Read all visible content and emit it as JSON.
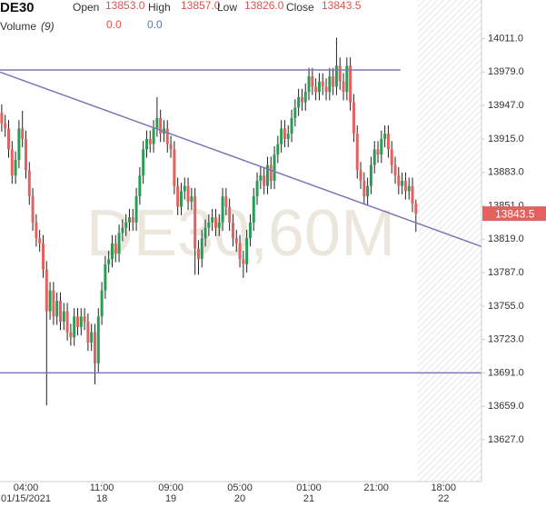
{
  "header": {
    "symbol": "DE30",
    "fields": [
      {
        "name": "Open",
        "value": "13853.0"
      },
      {
        "name": "High",
        "value": "13857.0"
      },
      {
        "name": "Low",
        "value": "13826.0"
      },
      {
        "name": "Close",
        "value": "13843.5"
      }
    ],
    "volume_label": "Volume",
    "volume_period": "(9)",
    "volume_values": [
      "0.0",
      "0.0"
    ]
  },
  "chart_data": {
    "type": "candlestick",
    "watermark": "DE30,60M",
    "up_color": "#2a9d55",
    "down_color": "#e5615f",
    "candles": {
      "open": [
        13940,
        13930,
        13925,
        13905,
        13880,
        13895,
        13925,
        13915,
        13885,
        13860,
        13835,
        13820,
        13815,
        13790,
        13750,
        13770,
        13745,
        13760,
        13740,
        13750,
        13730,
        13725,
        13745,
        13735,
        13745,
        13740,
        13720,
        13730,
        13700,
        13745,
        13770,
        13795,
        13800,
        13815,
        13805,
        13825,
        13830,
        13835,
        13840,
        13835,
        13860,
        13880,
        13905,
        13915,
        13910,
        13925,
        13935,
        13920,
        13925,
        13910,
        13905,
        13870,
        13850,
        13865,
        13870,
        13855,
        13860,
        13810,
        13800,
        13820,
        13830,
        13835,
        13840,
        13830,
        13835,
        13860,
        13850,
        13835,
        13820,
        13815,
        13800,
        13795,
        13820,
        13835,
        13860,
        13875,
        13880,
        13870,
        13890,
        13875,
        13900,
        13910,
        13925,
        13915,
        13920,
        13935,
        13945,
        13955,
        13950,
        13960,
        13975,
        13965,
        13960,
        13970,
        13965,
        13960,
        13975,
        13965,
        13985,
        13970,
        13960,
        13985,
        13950,
        13920,
        13885,
        13875,
        13860,
        13870,
        13890,
        13905,
        13900,
        13915,
        13920,
        13905,
        13890,
        13880,
        13870,
        13875,
        13865,
        13870,
        13853
      ],
      "high": [
        13948,
        13938,
        13933,
        13913,
        13903,
        13933,
        13942,
        13923,
        13893,
        13868,
        13843,
        13828,
        13823,
        13798,
        13778,
        13778,
        13768,
        13768,
        13758,
        13758,
        13738,
        13753,
        13753,
        13753,
        13753,
        13748,
        13738,
        13738,
        13753,
        13778,
        13803,
        13808,
        13823,
        13823,
        13833,
        13838,
        13843,
        13848,
        13848,
        13868,
        13888,
        13913,
        13923,
        13923,
        13933,
        13955,
        13943,
        13933,
        13933,
        13918,
        13913,
        13878,
        13873,
        13878,
        13878,
        13868,
        13868,
        13818,
        13828,
        13838,
        13843,
        13848,
        13848,
        13843,
        13868,
        13868,
        13858,
        13843,
        13828,
        13823,
        13808,
        13828,
        13843,
        13868,
        13883,
        13888,
        13888,
        13898,
        13898,
        13908,
        13918,
        13933,
        13933,
        13928,
        13943,
        13953,
        13963,
        13963,
        13968,
        13983,
        13983,
        13973,
        13978,
        13978,
        13973,
        13983,
        13983,
        14012,
        13993,
        13978,
        13993,
        13993,
        13958,
        13928,
        13893,
        13883,
        13878,
        13898,
        13913,
        13913,
        13923,
        13928,
        13928,
        13913,
        13898,
        13888,
        13883,
        13883,
        13878,
        13878,
        13857
      ],
      "low": [
        13922,
        13917,
        13897,
        13872,
        13872,
        13887,
        13907,
        13877,
        13852,
        13827,
        13812,
        13807,
        13782,
        13660,
        13742,
        13737,
        13737,
        13732,
        13732,
        13722,
        13717,
        13717,
        13727,
        13727,
        13732,
        13712,
        13712,
        13680,
        13692,
        13737,
        13762,
        13787,
        13792,
        13797,
        13797,
        13817,
        13822,
        13827,
        13827,
        13827,
        13852,
        13872,
        13897,
        13902,
        13902,
        13917,
        13912,
        13912,
        13902,
        13897,
        13862,
        13842,
        13842,
        13857,
        13847,
        13847,
        13785,
        13785,
        13792,
        13812,
        13822,
        13827,
        13822,
        13822,
        13827,
        13842,
        13827,
        13812,
        13807,
        13792,
        13782,
        13787,
        13812,
        13827,
        13852,
        13867,
        13862,
        13862,
        13867,
        13867,
        13892,
        13902,
        13907,
        13907,
        13912,
        13927,
        13937,
        13942,
        13942,
        13952,
        13957,
        13952,
        13952,
        13957,
        13952,
        13952,
        13957,
        13957,
        13962,
        13952,
        13952,
        13942,
        13912,
        13877,
        13867,
        13852,
        13852,
        13862,
        13882,
        13892,
        13892,
        13907,
        13897,
        13882,
        13872,
        13862,
        13862,
        13857,
        13857,
        13845,
        13826
      ],
      "close": [
        13930,
        13925,
        13905,
        13880,
        13895,
        13925,
        13915,
        13885,
        13860,
        13835,
        13820,
        13815,
        13790,
        13750,
        13770,
        13745,
        13760,
        13740,
        13750,
        13730,
        13725,
        13745,
        13735,
        13745,
        13740,
        13720,
        13730,
        13700,
        13745,
        13770,
        13795,
        13800,
        13815,
        13805,
        13825,
        13830,
        13835,
        13840,
        13835,
        13860,
        13880,
        13905,
        13915,
        13910,
        13925,
        13935,
        13920,
        13925,
        13910,
        13905,
        13870,
        13850,
        13865,
        13870,
        13855,
        13860,
        13810,
        13800,
        13820,
        13830,
        13835,
        13840,
        13830,
        13835,
        13860,
        13850,
        13835,
        13820,
        13815,
        13800,
        13795,
        13820,
        13835,
        13860,
        13875,
        13880,
        13870,
        13890,
        13875,
        13900,
        13910,
        13925,
        13915,
        13920,
        13935,
        13945,
        13955,
        13950,
        13960,
        13975,
        13965,
        13960,
        13970,
        13965,
        13960,
        13975,
        13965,
        13985,
        13970,
        13960,
        13985,
        13950,
        13920,
        13885,
        13875,
        13860,
        13870,
        13890,
        13905,
        13900,
        13915,
        13920,
        13905,
        13890,
        13880,
        13870,
        13875,
        13865,
        13870,
        13853,
        13843.5
      ]
    },
    "last_price": 13843.5,
    "lines": [
      {
        "x": [
          -0.5,
          139
        ],
        "y": [
          13979,
          13812
        ],
        "color": "#7b78b8"
      },
      {
        "x": [
          -0.5,
          115.5
        ],
        "y": [
          13981,
          13981
        ],
        "color": "#7b78b8"
      },
      {
        "x": [
          -0.5,
          139
        ],
        "y": [
          13691,
          13691
        ],
        "color": "#7b78b8"
      }
    ],
    "future_from": 120.5,
    "xlim": [
      -0.5,
      139
    ],
    "ylim": [
      13587,
      14048
    ],
    "yticks": [
      {
        "value": 14011,
        "label": "14011.0"
      },
      {
        "value": 13979,
        "label": "13979.0"
      },
      {
        "value": 13947,
        "label": "13947.0"
      },
      {
        "value": 13915,
        "label": "13915.0"
      },
      {
        "value": 13883,
        "label": "13883.0"
      },
      {
        "value": 13851,
        "label": "13851.0"
      },
      {
        "value": 13819,
        "label": "13819.0"
      },
      {
        "value": 13787,
        "label": "13787.0"
      },
      {
        "value": 13755,
        "label": "13755.0"
      },
      {
        "value": 13723,
        "label": "13723.0"
      },
      {
        "value": 13691,
        "label": "13691.0"
      },
      {
        "value": 13659,
        "label": "13659.0"
      },
      {
        "value": 13627,
        "label": "13627.0"
      }
    ],
    "xticks": [
      {
        "value": 7,
        "label": "04:00",
        "date": "01/15/2021"
      },
      {
        "value": 29,
        "label": "11:00",
        "date": "18"
      },
      {
        "value": 49,
        "label": "09:00",
        "date": "19"
      },
      {
        "value": 69,
        "label": "05:00",
        "date": "20"
      },
      {
        "value": 89,
        "label": "01:00",
        "date": "21"
      },
      {
        "value": 108.5,
        "label": "21:00"
      },
      {
        "value": 128,
        "label": "18:00",
        "date": "22"
      }
    ]
  }
}
